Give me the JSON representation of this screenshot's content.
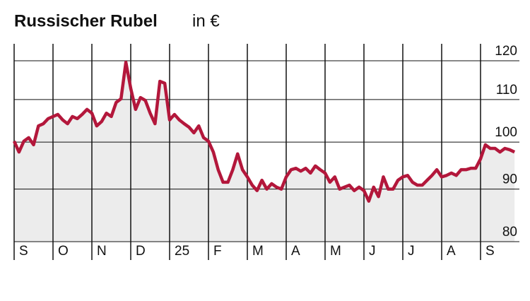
{
  "chart_data": {
    "type": "line",
    "title": "Russischer Rubel",
    "subtitle": "in €",
    "categories": [
      "S",
      null,
      null,
      null,
      null,
      null,
      null,
      null,
      "O",
      null,
      null,
      null,
      null,
      null,
      null,
      null,
      "N",
      null,
      null,
      null,
      null,
      null,
      null,
      null,
      "D",
      null,
      null,
      null,
      null,
      null,
      null,
      null,
      "25",
      null,
      null,
      null,
      null,
      null,
      null,
      null,
      "F",
      null,
      null,
      null,
      null,
      null,
      null,
      null,
      "M",
      null,
      null,
      null,
      null,
      null,
      null,
      null,
      "A",
      null,
      null,
      null,
      null,
      null,
      null,
      null,
      "M",
      null,
      null,
      null,
      null,
      null,
      null,
      null,
      "J",
      null,
      null,
      null,
      null,
      null,
      null,
      null,
      "J",
      null,
      null,
      null,
      null,
      null,
      null,
      null,
      "A",
      null,
      null,
      null,
      null,
      null,
      null,
      null,
      "S",
      null,
      null,
      null,
      null,
      null,
      null,
      null
    ],
    "series": [
      {
        "name": "Rubel",
        "color": "#b3173b",
        "values": [
          100.2,
          97.8,
          100.2,
          101.0,
          99.4,
          103.7,
          104.2,
          105.4,
          105.9,
          106.4,
          105.1,
          104.2,
          105.9,
          105.4,
          106.4,
          107.6,
          106.7,
          103.7,
          104.7,
          106.7,
          105.9,
          109.3,
          110.2,
          119.6,
          112.8,
          107.6,
          110.5,
          109.8,
          106.7,
          104.2,
          114.6,
          114.1,
          105.1,
          106.4,
          105.1,
          104.2,
          103.4,
          102.1,
          103.7,
          101.0,
          100.2,
          97.8,
          94.0,
          91.4,
          91.4,
          94.0,
          97.4,
          94.0,
          92.5,
          90.8,
          89.7,
          91.8,
          90.0,
          91.1,
          90.4,
          90.0,
          92.5,
          94.0,
          94.3,
          93.7,
          94.3,
          93.3,
          94.8,
          94.0,
          93.3,
          91.4,
          92.5,
          90.0,
          90.4,
          90.8,
          89.7,
          90.4,
          89.7,
          87.6,
          90.4,
          88.5,
          92.5,
          90.0,
          90.0,
          91.8,
          92.5,
          92.8,
          91.4,
          90.8,
          90.8,
          91.8,
          92.8,
          94.0,
          92.5,
          92.8,
          93.3,
          92.8,
          94.0,
          94.0,
          94.3,
          94.3,
          96.3,
          99.4,
          98.6,
          98.6,
          97.8,
          98.6,
          98.3,
          97.8
        ]
      }
    ],
    "ylim": [
      80,
      120
    ],
    "yticks": [
      80,
      90,
      100,
      110,
      120
    ],
    "log": true,
    "grid": true,
    "area_color": "#ececec"
  }
}
